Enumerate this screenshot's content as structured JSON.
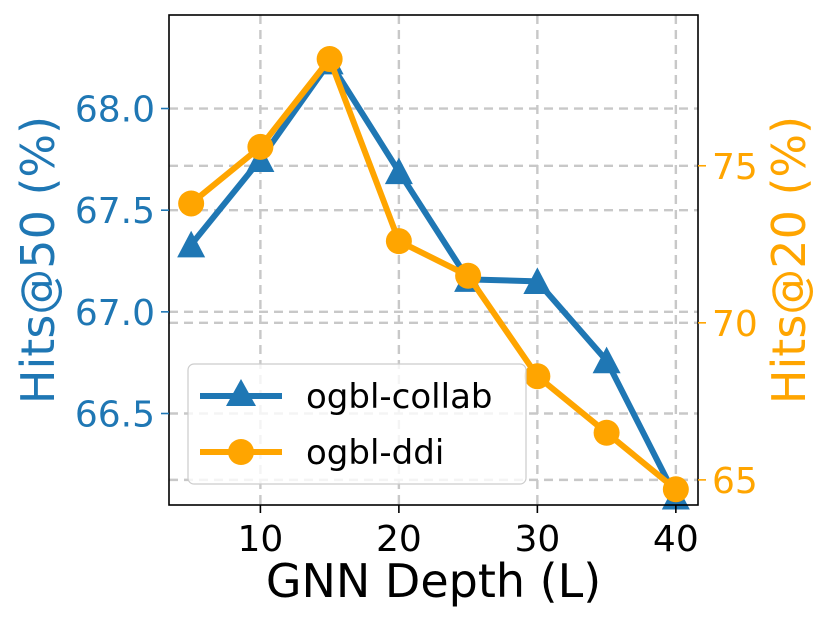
{
  "chart_data": {
    "type": "line",
    "xlabel": "GNN Depth (L)",
    "ylabel_left": "Hits@50 (%)",
    "ylabel_right": "Hits@20 (%)",
    "x": [
      5,
      10,
      15,
      20,
      25,
      30,
      35,
      40
    ],
    "x_ticks": [
      "10",
      "20",
      "30",
      "40"
    ],
    "y_left_ticks": [
      "66.5",
      "67.0",
      "67.5",
      "68.0"
    ],
    "y_right_ticks": [
      "65",
      "70",
      "75"
    ],
    "xlim": [
      3.4,
      41.6
    ],
    "ylim_left": [
      66.05,
      68.46
    ],
    "ylim_right": [
      64.2,
      79.8
    ],
    "grid": true,
    "legend_position": "lower-left",
    "series": [
      {
        "name": "ogbl-collab",
        "axis": "left",
        "marker": "triangle",
        "color": "#1f77b4",
        "values": [
          67.33,
          67.75,
          68.23,
          67.69,
          67.16,
          67.15,
          66.76,
          66.09
        ]
      },
      {
        "name": "ogbl-ddi",
        "axis": "right",
        "marker": "circle",
        "color": "#ffa500",
        "values": [
          73.8,
          75.6,
          78.4,
          72.6,
          71.5,
          68.3,
          66.5,
          64.7
        ]
      }
    ],
    "colors": {
      "left_axis": "#1f77b4",
      "right_axis": "#ffa500",
      "grid": "#c8c8c8"
    }
  }
}
